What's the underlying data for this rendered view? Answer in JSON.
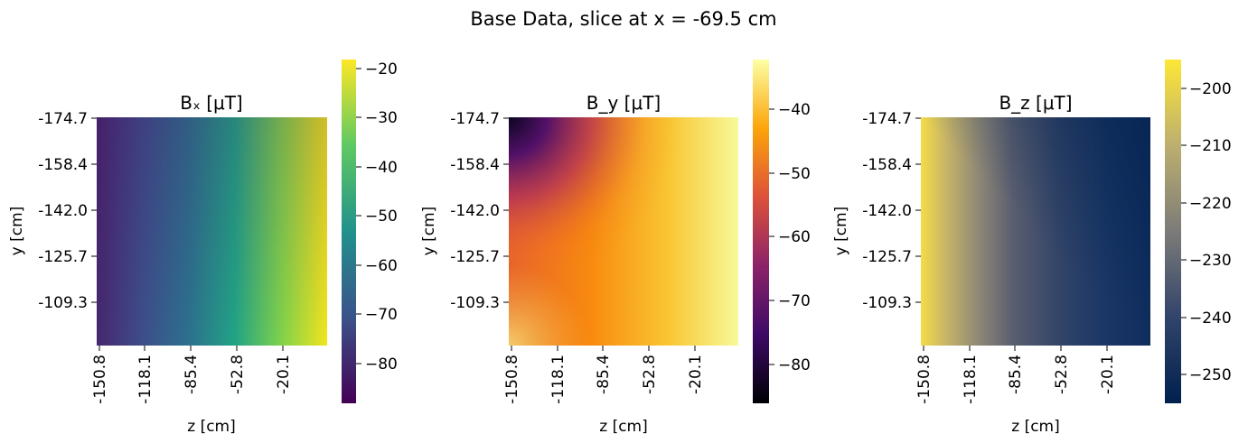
{
  "figure": {
    "suptitle": "Base Data, slice at x = -69.5 cm"
  },
  "chart_data": [
    {
      "type": "heatmap",
      "title": "Bₓ [μT]",
      "xlabel": "z [cm]",
      "ylabel": "y [cm]",
      "x_ticks": [
        "-150.8",
        "-118.1",
        "-85.4",
        "-52.8",
        "-20.1"
      ],
      "y_ticks": [
        "-174.7",
        "-158.4",
        "-142.0",
        "-125.7",
        "-109.3"
      ],
      "colormap": "viridis",
      "colorbar": {
        "min": -88,
        "max": -18,
        "ticks": [
          -20,
          -30,
          -40,
          -50,
          -60,
          -70,
          -80
        ]
      },
      "grid": false
    },
    {
      "type": "heatmap",
      "title": "B_y [μT]",
      "xlabel": "z [cm]",
      "ylabel": "y [cm]",
      "x_ticks": [
        "-150.8",
        "-118.1",
        "-85.4",
        "-52.8",
        "-20.1"
      ],
      "y_ticks": [
        "-174.7",
        "-158.4",
        "-142.0",
        "-125.7",
        "-109.3"
      ],
      "colormap": "inferno",
      "colorbar": {
        "min": -86,
        "max": -33,
        "ticks": [
          -40,
          -50,
          -60,
          -70,
          -80
        ]
      },
      "grid": false
    },
    {
      "type": "heatmap",
      "title": "B_z [μT]",
      "xlabel": "z [cm]",
      "ylabel": "y [cm]",
      "x_ticks": [
        "-150.8",
        "-118.1",
        "-85.4",
        "-52.8",
        "-20.1"
      ],
      "y_ticks": [
        "-174.7",
        "-158.4",
        "-142.0",
        "-125.7",
        "-109.3"
      ],
      "colormap": "cividis",
      "colorbar": {
        "min": -255,
        "max": -195,
        "ticks": [
          -200,
          -210,
          -220,
          -230,
          -240,
          -250
        ]
      },
      "grid": false
    }
  ]
}
